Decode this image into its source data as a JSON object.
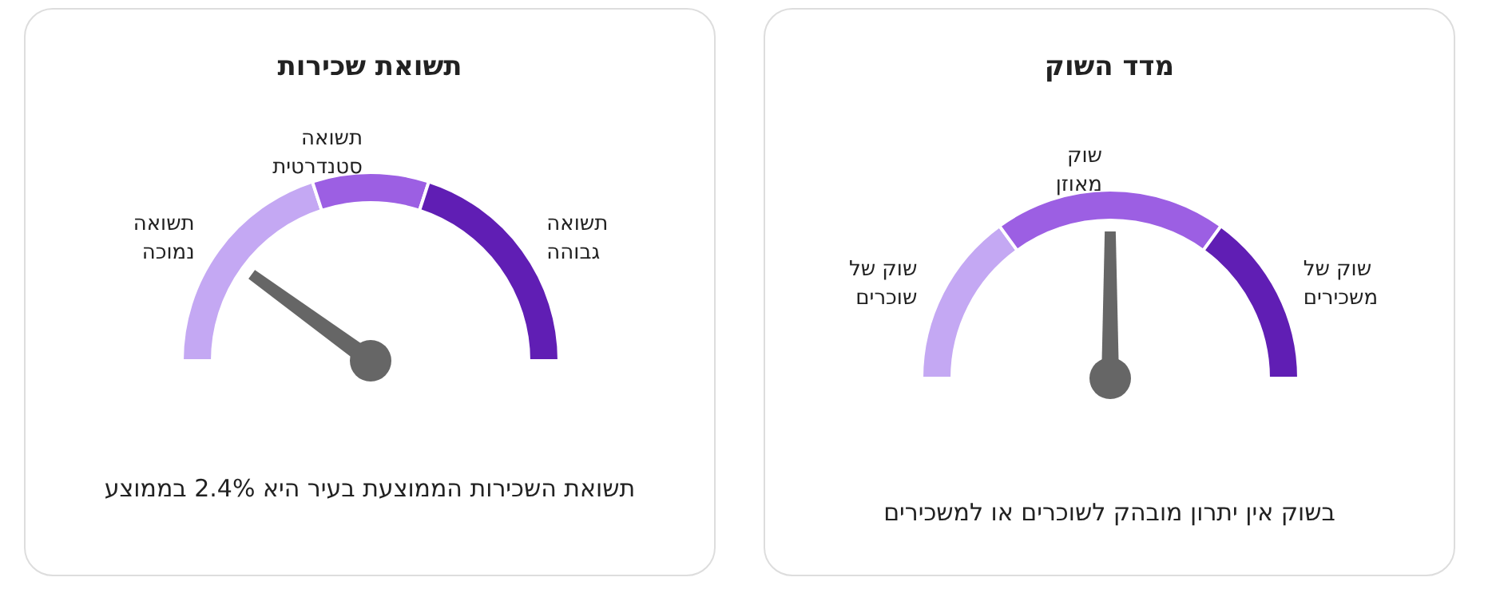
{
  "chart_data": [
    {
      "type": "donut",
      "title": "תשואת שכירות",
      "categories": [
        "תשואה נמוכה",
        "תשואה סטנדרטית",
        "תשואה גבוהה"
      ],
      "values": [
        40,
        20,
        40
      ],
      "colors": [
        "#c4a8f3",
        "#9c5fe3",
        "#601eb4"
      ],
      "needle": "תשואה נמוכה",
      "annotations": [
        "תשואת השכירות הממוצעת בעיר היא 2.4% בממוצע"
      ]
    },
    {
      "type": "donut",
      "title": "מדד השוק",
      "categories": [
        "שוק של שוכרים",
        "שוק מאוזן",
        "שוק של משכירים"
      ],
      "values": [
        30,
        40,
        30
      ],
      "colors": [
        "#c4a8f3",
        "#9c5fe3",
        "#601eb4"
      ],
      "needle": "שוק מאוזן",
      "annotations": [
        "בשוק אין יתרון מובהק לשוכרים או למשכירים"
      ]
    }
  ]
}
